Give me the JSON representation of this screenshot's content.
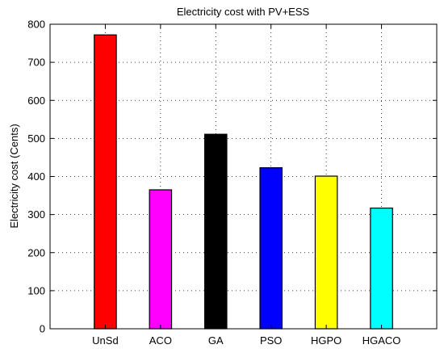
{
  "chart_data": {
    "type": "bar",
    "title": "Electricity cost with PV+ESS",
    "xlabel": "",
    "ylabel": "Electricity cost (Cents)",
    "categories": [
      "UnSd",
      "ACO",
      "GA",
      "PSO",
      "HGPO",
      "HGACO"
    ],
    "values": [
      772,
      365,
      511,
      423,
      401,
      317
    ],
    "colors": [
      "#ff0000",
      "#ff00ff",
      "#000000",
      "#0000ff",
      "#ffff00",
      "#00ffff"
    ],
    "ylim": [
      0,
      800
    ],
    "yticks": [
      0,
      100,
      200,
      300,
      400,
      500,
      600,
      700,
      800
    ],
    "grid": true,
    "legend": "none"
  }
}
